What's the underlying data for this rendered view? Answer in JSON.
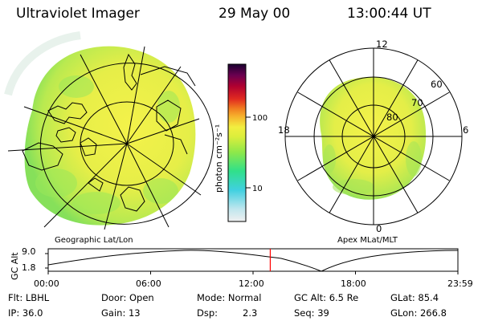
{
  "header": {
    "instrument": "Ultraviolet Imager",
    "date": "29 May 00",
    "time": "13:00:44 UT"
  },
  "left_panel": {
    "caption": "Geographic Lat/Lon"
  },
  "right_panel": {
    "caption": "Apex MLat/MLT",
    "mlt_labels": [
      "12",
      "18",
      "6",
      "0"
    ],
    "lat_labels": [
      "60",
      "70",
      "80"
    ]
  },
  "colorbar": {
    "unit": "photon cm⁻²s⁻¹",
    "ticks": [
      "100",
      "10"
    ],
    "colors": [
      "#f0f0f0",
      "#bfe6ee",
      "#40d0e0",
      "#30e08a",
      "#8ee84a",
      "#dcee3c",
      "#f2ee40",
      "#f6b02c",
      "#f07a20",
      "#e02a20",
      "#b00030",
      "#6a0050",
      "#1a0030"
    ]
  },
  "timeline": {
    "y_label": "GC Alt",
    "y_ticks": [
      "9.0",
      "1.8"
    ],
    "x_ticks": [
      "00:00",
      "06:00",
      "12:00",
      "18:00",
      "23:59"
    ],
    "current_time_fraction": 0.542,
    "marker_color": "#ff0000"
  },
  "footer": {
    "row1": {
      "flt": "Flt: LBHL",
      "door": "Door: Open",
      "mode": "Mode: Normal",
      "gcalt": "GC Alt: 6.5 Re",
      "glat": "GLat: 85.4"
    },
    "row2": {
      "ip": "IP: 36.0",
      "gain": "Gain: 13",
      "dsp_label": "Dsp:",
      "dsp_value": "2.3",
      "seq": "Seq: 39",
      "glon": "GLon: 266.8"
    }
  }
}
